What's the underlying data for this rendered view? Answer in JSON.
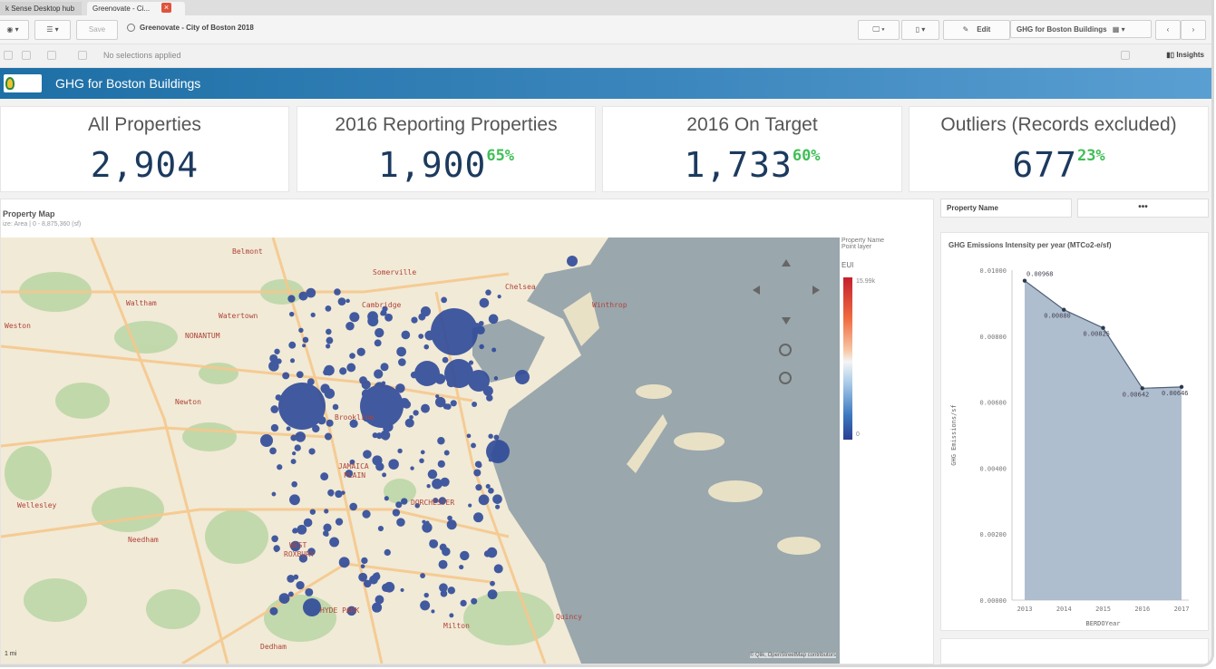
{
  "tabs": [
    "k Sense Desktop hub",
    "Greenovate - Ci..."
  ],
  "toolbar": {
    "save_label": "Save",
    "app_title": "Greenovate - City of Boston 2018",
    "edit_label": "Edit",
    "sheet_name": "GHG for Boston Buildings"
  },
  "selection_bar": {
    "text": "No selections applied",
    "insights_label": "Insights"
  },
  "banner": {
    "title": "GHG for Boston Buildings"
  },
  "kpis": [
    {
      "label": "All Properties",
      "value": "2,904",
      "pct": ""
    },
    {
      "label": "2016 Reporting Properties",
      "value": "1,900",
      "pct": "65%"
    },
    {
      "label": "2016 On Target",
      "value": "1,733",
      "pct": "60%"
    },
    {
      "label": "Outliers (Records excluded)",
      "value": "677",
      "pct": "23%"
    }
  ],
  "map": {
    "title": "Property Map",
    "subtitle": "ize: Area | 0 - 8,875,360 (sf)",
    "legend_title1": "Property Name",
    "legend_title2": "Point layer",
    "legend_eui": "EUI",
    "legend_max": "15.99k",
    "legend_min": "0",
    "scale": "1 mi",
    "attribution": "© Qlik, OpenStreetMap contributors",
    "place_labels": [
      {
        "name": "Belmont",
        "x": 255,
        "y": 279
      },
      {
        "name": "Somerville",
        "x": 410,
        "y": 302
      },
      {
        "name": "Chelsea",
        "x": 556,
        "y": 318
      },
      {
        "name": "Waltham",
        "x": 138,
        "y": 336
      },
      {
        "name": "Cambridge",
        "x": 398,
        "y": 338
      },
      {
        "name": "Winthrop",
        "x": 652,
        "y": 338
      },
      {
        "name": "Watertown",
        "x": 240,
        "y": 350
      },
      {
        "name": "Weston",
        "x": 4,
        "y": 361
      },
      {
        "name": "NONANTUM",
        "x": 203,
        "y": 372
      },
      {
        "name": "Newton",
        "x": 192,
        "y": 445
      },
      {
        "name": "Brookline",
        "x": 368,
        "y": 462
      },
      {
        "name": "JAMAICA",
        "x": 372,
        "y": 516
      },
      {
        "name": "PLAIN",
        "x": 378,
        "y": 526
      },
      {
        "name": "DORCHESTER",
        "x": 452,
        "y": 556
      },
      {
        "name": "Wellesley",
        "x": 18,
        "y": 559
      },
      {
        "name": "Needham",
        "x": 140,
        "y": 597
      },
      {
        "name": "WEST",
        "x": 318,
        "y": 603
      },
      {
        "name": "ROXBURY",
        "x": 312,
        "y": 613
      },
      {
        "name": "HYDE PARK",
        "x": 352,
        "y": 675
      },
      {
        "name": "Milton",
        "x": 488,
        "y": 692
      },
      {
        "name": "Quincy",
        "x": 612,
        "y": 682
      },
      {
        "name": "Dedham",
        "x": 286,
        "y": 715
      }
    ]
  },
  "property_filter": {
    "label": "Property Name",
    "more": "•••"
  },
  "chart_data": {
    "type": "area",
    "title": "GHG Emissions Intensity per year (MTCo2-e/sf)",
    "xlabel": "BERDOYear",
    "ylabel": "GHG Emissions/sf",
    "categories": [
      "2013",
      "2014",
      "2015",
      "2016",
      "2017"
    ],
    "values": [
      0.00968,
      0.0088,
      0.00825,
      0.00642,
      0.00646
    ],
    "data_labels": [
      "0.00968",
      "0.00880",
      "0.00825",
      "0.00642",
      "0.00646"
    ],
    "yticks": [
      "0.01000",
      "0.00800",
      "0.00600",
      "0.00400",
      "0.00200",
      "0.00000"
    ],
    "ylim": [
      0,
      0.01
    ],
    "fill_color": "#a6b7c9",
    "line_color": "#4d6079"
  },
  "colors": {
    "accent": "#2a6fa8",
    "kpi_value": "#1c3a5e",
    "kpi_pct": "#3fbf56",
    "bubble": "#2f4a9a"
  }
}
